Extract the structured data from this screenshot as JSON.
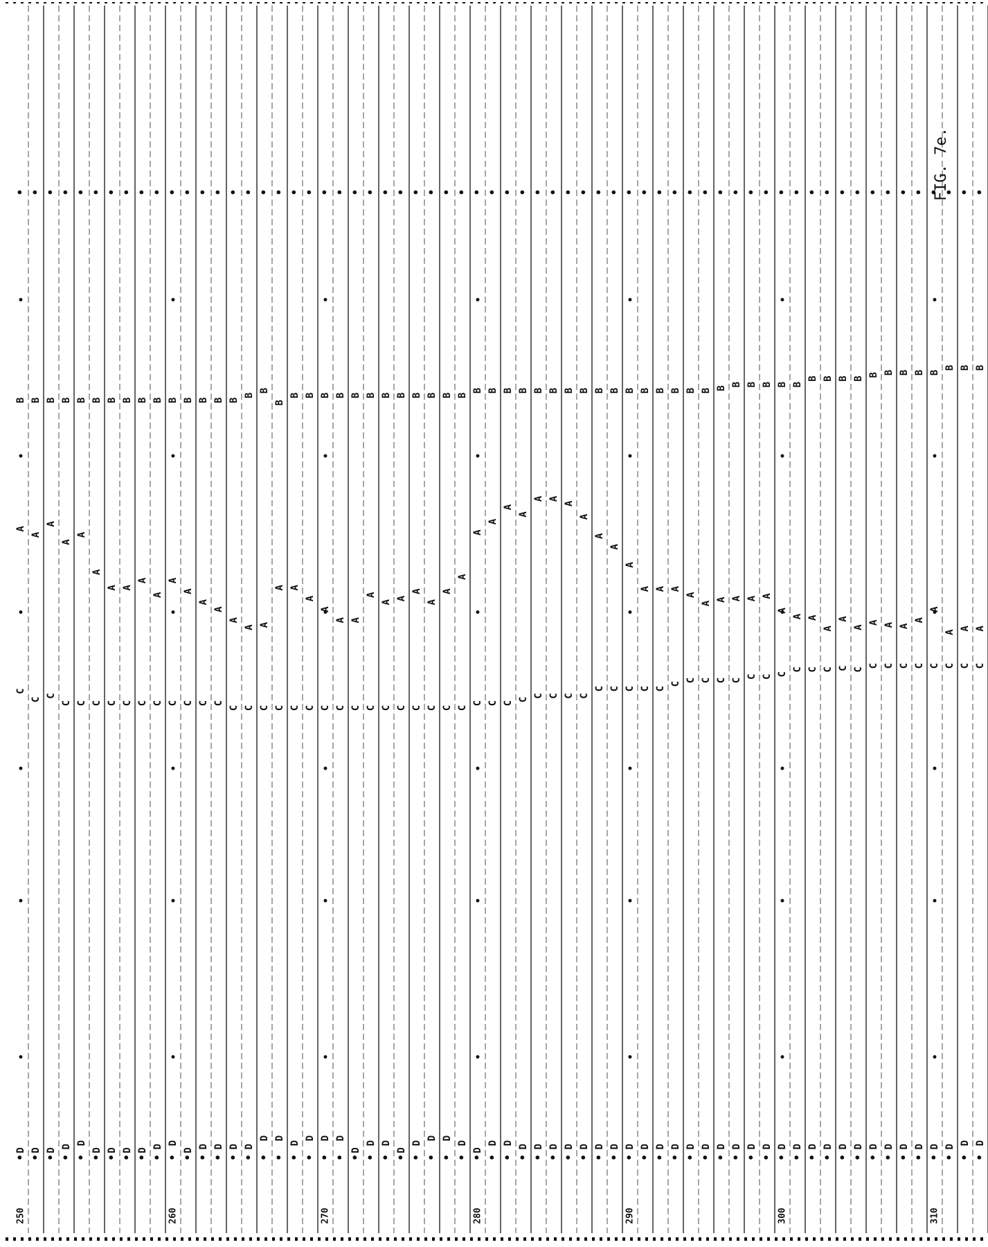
{
  "figure_label": "FIG. 7e.",
  "colors": {
    "ink": "#111111",
    "paper": "#ffffff",
    "rule": "#222222"
  },
  "chart_data": {
    "type": "scatter",
    "orientation": "rotated",
    "title": "",
    "xlabel": "",
    "ylabel": "",
    "grid": true,
    "x_range": [
      250,
      313
    ],
    "x_tick_labels": [
      "250",
      "260",
      "270",
      "280",
      "290",
      "300",
      "310"
    ],
    "x": [
      250,
      251,
      252,
      253,
      254,
      255,
      256,
      257,
      258,
      259,
      260,
      261,
      262,
      263,
      264,
      265,
      266,
      267,
      268,
      269,
      270,
      271,
      272,
      273,
      274,
      275,
      276,
      277,
      278,
      279,
      280,
      281,
      282,
      283,
      284,
      285,
      286,
      287,
      288,
      289,
      290,
      291,
      292,
      293,
      294,
      295,
      296,
      297,
      298,
      299,
      300,
      301,
      302,
      303,
      304,
      305,
      306,
      307,
      308,
      309,
      310,
      311,
      312,
      313
    ],
    "series": [
      {
        "name": "A",
        "values": [
          0.56,
          0.555,
          0.564,
          0.549,
          0.555,
          0.524,
          0.511,
          0.511,
          0.517,
          0.505,
          0.517,
          0.508,
          0.499,
          0.493,
          0.484,
          0.478,
          0.48,
          0.511,
          0.511,
          0.502,
          0.493,
          0.484,
          0.484,
          0.505,
          0.499,
          0.502,
          0.508,
          0.499,
          0.508,
          0.52,
          0.557,
          0.566,
          0.578,
          0.572,
          0.585,
          0.585,
          0.581,
          0.57,
          0.554,
          0.545,
          0.53,
          0.51,
          0.51,
          0.51,
          0.505,
          0.498,
          0.501,
          0.502,
          0.502,
          0.504,
          0.492,
          0.487,
          0.486,
          0.477,
          0.485,
          0.478,
          0.482,
          0.48,
          0.479,
          0.484,
          0.493,
          0.474,
          0.477,
          0.477
        ]
      },
      {
        "name": "B",
        "values": [
          0.667,
          0.667,
          0.667,
          0.667,
          0.667,
          0.667,
          0.667,
          0.667,
          0.667,
          0.667,
          0.667,
          0.667,
          0.667,
          0.667,
          0.667,
          0.671,
          0.675,
          0.665,
          0.671,
          0.671,
          0.671,
          0.671,
          0.671,
          0.671,
          0.671,
          0.671,
          0.671,
          0.671,
          0.671,
          0.671,
          0.675,
          0.675,
          0.675,
          0.675,
          0.675,
          0.675,
          0.675,
          0.675,
          0.675,
          0.675,
          0.675,
          0.675,
          0.675,
          0.675,
          0.675,
          0.675,
          0.677,
          0.68,
          0.68,
          0.68,
          0.68,
          0.68,
          0.685,
          0.685,
          0.685,
          0.685,
          0.688,
          0.69,
          0.69,
          0.69,
          0.69,
          0.694,
          0.694,
          0.694
        ]
      },
      {
        "name": "C",
        "values": [
          0.425,
          0.418,
          0.421,
          0.415,
          0.415,
          0.415,
          0.415,
          0.415,
          0.415,
          0.415,
          0.415,
          0.415,
          0.415,
          0.415,
          0.411,
          0.411,
          0.411,
          0.411,
          0.411,
          0.411,
          0.411,
          0.411,
          0.411,
          0.411,
          0.411,
          0.411,
          0.411,
          0.411,
          0.411,
          0.411,
          0.415,
          0.415,
          0.415,
          0.418,
          0.421,
          0.421,
          0.421,
          0.421,
          0.427,
          0.427,
          0.427,
          0.427,
          0.427,
          0.431,
          0.434,
          0.434,
          0.434,
          0.434,
          0.437,
          0.437,
          0.439,
          0.443,
          0.443,
          0.443,
          0.444,
          0.443,
          0.446,
          0.446,
          0.446,
          0.446,
          0.446,
          0.446,
          0.446,
          0.446
        ]
      },
      {
        "name": "D",
        "values": [
          0.043,
          0.043,
          0.043,
          0.046,
          0.049,
          0.043,
          0.043,
          0.043,
          0.043,
          0.046,
          0.049,
          0.043,
          0.046,
          0.046,
          0.046,
          0.046,
          0.053,
          0.053,
          0.049,
          0.053,
          0.053,
          0.053,
          0.043,
          0.049,
          0.049,
          0.043,
          0.049,
          0.053,
          0.053,
          0.049,
          0.043,
          0.049,
          0.049,
          0.046,
          0.046,
          0.046,
          0.046,
          0.046,
          0.046,
          0.046,
          0.046,
          0.046,
          0.046,
          0.046,
          0.046,
          0.046,
          0.046,
          0.046,
          0.046,
          0.046,
          0.046,
          0.046,
          0.046,
          0.046,
          0.046,
          0.046,
          0.046,
          0.046,
          0.046,
          0.046,
          0.046,
          0.046,
          0.049,
          0.049
        ]
      },
      {
        "name": "+",
        "values": [
          0.037,
          0.037,
          0.037,
          0.037,
          0.037,
          0.037,
          0.037,
          0.037,
          0.037,
          0.037,
          0.037,
          0.037,
          0.037,
          0.037,
          0.037,
          0.037,
          0.037,
          0.037,
          0.037,
          0.037,
          0.037,
          0.037,
          0.037,
          0.037,
          0.037,
          0.037,
          0.037,
          0.037,
          0.037,
          0.037,
          0.037,
          0.037,
          0.037,
          0.037,
          0.037,
          0.037,
          0.037,
          0.037,
          0.037,
          0.037,
          0.037,
          0.037,
          0.037,
          0.037,
          0.037,
          0.037,
          0.037,
          0.037,
          0.037,
          0.037,
          0.037,
          0.037,
          0.037,
          0.037,
          0.037,
          0.037,
          0.037,
          0.037,
          0.037,
          0.037,
          0.037,
          0.037,
          0.037,
          0.037
        ]
      },
      {
        "name": "*",
        "values": [
          0.84,
          0.84,
          0.84,
          0.84,
          0.84,
          0.84,
          0.84,
          0.84,
          0.84,
          0.84,
          0.84,
          0.84,
          0.84,
          0.84,
          0.84,
          0.84,
          0.84,
          0.84,
          0.84,
          0.84,
          0.84,
          0.84,
          0.84,
          0.84,
          0.84,
          0.84,
          0.84,
          0.84,
          0.84,
          0.84,
          0.84,
          0.84,
          0.84,
          0.84,
          0.84,
          0.84,
          0.84,
          0.84,
          0.84,
          0.84,
          0.84,
          0.84,
          0.84,
          0.84,
          0.84,
          0.84,
          0.84,
          0.84,
          0.84,
          0.84,
          0.84,
          0.84,
          0.84,
          0.84,
          0.84,
          0.84,
          0.84,
          0.84,
          0.84,
          0.84,
          0.84,
          0.84,
          0.84,
          0.84
        ]
      }
    ]
  }
}
